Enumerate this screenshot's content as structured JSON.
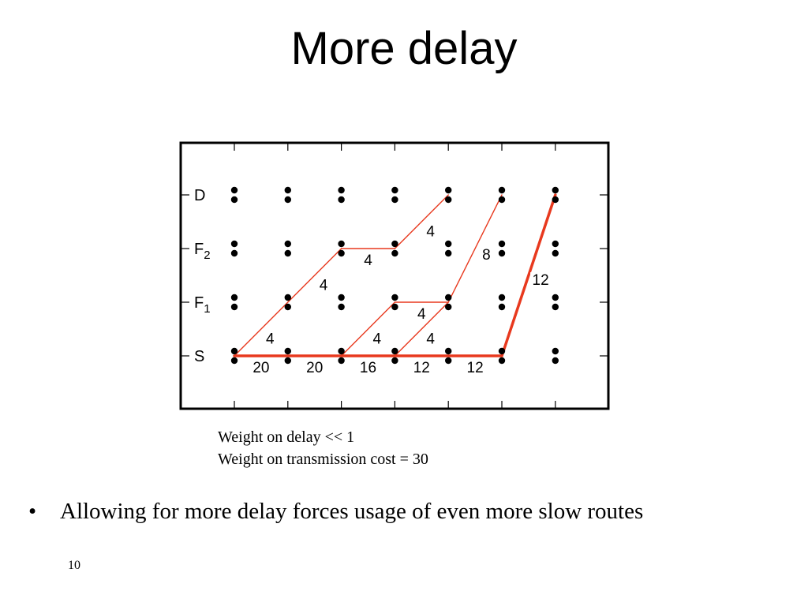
{
  "title": "More delay",
  "diagram": {
    "rows": [
      {
        "name": "S",
        "sub": ""
      },
      {
        "name": "F",
        "sub": "1"
      },
      {
        "name": "F",
        "sub": "2"
      },
      {
        "name": "D",
        "sub": ""
      }
    ],
    "columns": 7,
    "edge_color": "#e8391e",
    "edges": [
      {
        "from": [
          0,
          0
        ],
        "to": [
          1,
          1
        ],
        "label": "4",
        "style": "thin"
      },
      {
        "from": [
          1,
          1
        ],
        "to": [
          2,
          2
        ],
        "label": "4",
        "style": "thin"
      },
      {
        "from": [
          2,
          2
        ],
        "to": [
          3,
          2
        ],
        "label": "4",
        "style": "thin"
      },
      {
        "from": [
          3,
          2
        ],
        "to": [
          4,
          3
        ],
        "label": "4",
        "style": "thin"
      },
      {
        "from": [
          2,
          0
        ],
        "to": [
          3,
          1
        ],
        "label": "4",
        "style": "thin"
      },
      {
        "from": [
          3,
          1
        ],
        "to": [
          4,
          1
        ],
        "label": "4",
        "style": "thin"
      },
      {
        "from": [
          4,
          1
        ],
        "to": [
          5,
          3
        ],
        "label": "8",
        "style": "thin"
      },
      {
        "from": [
          3,
          0
        ],
        "to": [
          4,
          1
        ],
        "label": "4",
        "style": "thin"
      },
      {
        "from": [
          5,
          0
        ],
        "to": [
          6,
          3
        ],
        "label": "12",
        "style": "thick"
      },
      {
        "from": [
          0,
          0
        ],
        "to": [
          1,
          0
        ],
        "label": "20",
        "style": "thick"
      },
      {
        "from": [
          1,
          0
        ],
        "to": [
          2,
          0
        ],
        "label": "20",
        "style": "thick"
      },
      {
        "from": [
          2,
          0
        ],
        "to": [
          3,
          0
        ],
        "label": "16",
        "style": "thick"
      },
      {
        "from": [
          3,
          0
        ],
        "to": [
          4,
          0
        ],
        "label": "12",
        "style": "thick"
      },
      {
        "from": [
          4,
          0
        ],
        "to": [
          5,
          0
        ],
        "label": "12",
        "style": "thick"
      }
    ]
  },
  "caption": {
    "line1": "Weight on delay << 1",
    "line2": "Weight on transmission cost = 30"
  },
  "bullet": {
    "symbol": "•",
    "text": "Allowing for more delay forces usage of even more slow routes"
  },
  "page_number": "10"
}
